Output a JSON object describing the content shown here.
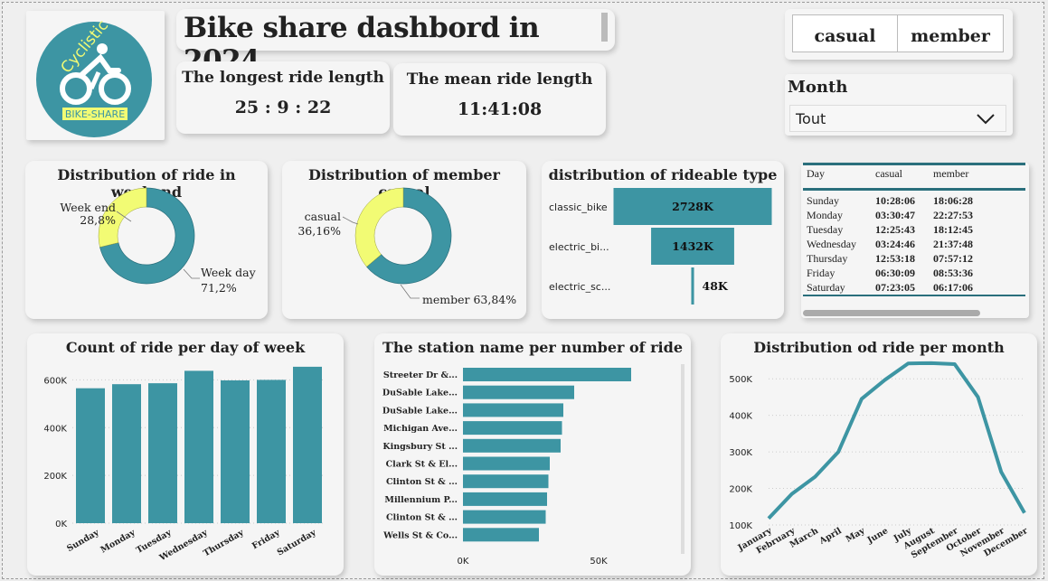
{
  "header": {
    "title": "Bike share dashbord in 2024",
    "logo_top_text": "Cyclistic",
    "logo_bottom_text": "BIKE-SHARE"
  },
  "kpis": {
    "longest": {
      "label": "The longest ride length",
      "value": "25 : 9 : 22"
    },
    "mean": {
      "label": "The mean ride length",
      "value": "11:41:08"
    }
  },
  "slicer": {
    "casual": "casual",
    "member": "member"
  },
  "month_filter": {
    "label": "Month",
    "value": "Tout"
  },
  "colors": {
    "teal": "#3d95a3",
    "yellow": "#f2fb74",
    "accent_dark": "#2a6f7c"
  },
  "chart_data": [
    {
      "type": "pie",
      "title": "Distribution of ride in weekend",
      "categories": [
        "Week end",
        "Week day"
      ],
      "labels": [
        "28,8%",
        "71,2%"
      ],
      "values": [
        28.8,
        71.2
      ]
    },
    {
      "type": "pie",
      "title": "Distribution of member casual",
      "categories": [
        "casual",
        "member"
      ],
      "labels": [
        "36,16%",
        "63,84%"
      ],
      "values": [
        36.16,
        63.84
      ]
    },
    {
      "type": "bar",
      "title": "distribution of rideable type",
      "categories": [
        "classic_bike",
        "electric_bi...",
        "electric_sc..."
      ],
      "values": [
        2728,
        1432,
        48
      ],
      "value_labels": [
        "2728K",
        "1432K",
        "48K"
      ]
    },
    {
      "type": "table",
      "columns": [
        "Day",
        "casual",
        "member"
      ],
      "rows": [
        [
          "Sunday",
          "10:28:06",
          "18:06:28"
        ],
        [
          "Monday",
          "03:30:47",
          "22:27:53"
        ],
        [
          "Tuesday",
          "12:25:43",
          "18:12:45"
        ],
        [
          "Wednesday",
          "03:24:46",
          "21:37:48"
        ],
        [
          "Thursday",
          "12:53:18",
          "07:57:12"
        ],
        [
          "Friday",
          "06:30:09",
          "08:53:36"
        ],
        [
          "Saturday",
          "07:23:05",
          "06:17:06"
        ]
      ]
    },
    {
      "type": "bar",
      "title": "Count of ride per day of week",
      "categories": [
        "Sunday",
        "Monday",
        "Tuesday",
        "Wednesday",
        "Thursday",
        "Friday",
        "Saturday"
      ],
      "values": [
        565000,
        582000,
        586000,
        638000,
        598000,
        600000,
        655000
      ],
      "ylim": [
        0,
        700000
      ],
      "yticks": [
        0,
        200000,
        400000,
        600000
      ],
      "ytick_labels": [
        "0K",
        "200K",
        "400K",
        "600K"
      ],
      "grid": true
    },
    {
      "type": "bar",
      "orientation": "horizontal",
      "title": "The station name per number of ride",
      "categories": [
        "Streeter Dr &...",
        "DuSable Lake...",
        "DuSable Lake...",
        "Michigan Ave...",
        "Kingsbury St ...",
        "Clark St & El...",
        "Clinton St & ...",
        "Millennium P...",
        "Clinton St & ...",
        "Wells St & Co..."
      ],
      "values": [
        62000,
        41000,
        37000,
        36500,
        36000,
        32000,
        31500,
        31000,
        30500,
        28000
      ],
      "xlim": [
        0,
        75000
      ],
      "xticks": [
        0,
        50000
      ],
      "xtick_labels": [
        "0K",
        "50K"
      ]
    },
    {
      "type": "line",
      "title": "Distribution od ride per month",
      "categories": [
        "January",
        "February",
        "March",
        "April",
        "May",
        "June",
        "July",
        "August",
        "September",
        "October",
        "November",
        "December"
      ],
      "values": [
        118000,
        185000,
        232000,
        300000,
        445000,
        497000,
        542000,
        543000,
        540000,
        450000,
        245000,
        133000
      ],
      "ylim": [
        100000,
        550000
      ],
      "yticks": [
        100000,
        200000,
        300000,
        400000,
        500000
      ],
      "ytick_labels": [
        "100K",
        "200K",
        "300K",
        "400K",
        "500K"
      ],
      "grid": true
    }
  ]
}
